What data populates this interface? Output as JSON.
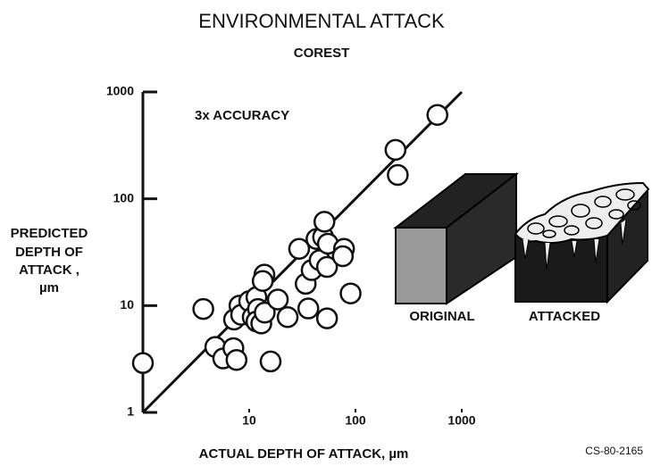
{
  "chart_data": {
    "type": "scatter",
    "title": "ENVIRONMENTAL ATTACK",
    "subtitle": "COREST",
    "annotation": "3x ACCURACY",
    "x_label": "ACTUAL DEPTH OF ATTACK, µm",
    "y_label": [
      "PREDICTED",
      "DEPTH OF",
      "ATTACK ,",
      "µm"
    ],
    "figure_labels": [
      "ORIGINAL",
      "ATTACKED"
    ],
    "code": "CS-80-2165",
    "log_x": true,
    "log_y": true,
    "xlim": [
      1,
      1000
    ],
    "ylim": [
      1,
      1000
    ],
    "xticks": [
      1,
      10,
      100,
      1000
    ],
    "yticks": [
      1,
      10,
      100,
      1000
    ],
    "color": "#111111",
    "x": [
      1,
      3.7,
      4.8,
      5.7,
      7.1,
      7.6,
      7.2,
      8.1,
      8.4,
      10,
      10.8,
      11.7,
      12.1,
      11.7,
      13,
      13.9,
      13.4,
      14,
      15.9,
      18.6,
      23,
      29.5,
      36,
      34,
      38.7,
      46,
      43,
      49.6,
      51,
      55,
      54,
      54,
      78,
      76,
      90,
      238,
      250,
      590
    ],
    "values": [
      2.9,
      9.3,
      4.1,
      3.2,
      4.0,
      3.1,
      7.4,
      10,
      8.2,
      11,
      7.8,
      12,
      9.3,
      7.1,
      6.8,
      19.5,
      17,
      8.6,
      3.0,
      11.4,
      7.8,
      34,
      9.4,
      16,
      21.5,
      26.6,
      42,
      43.8,
      61,
      38,
      7.6,
      23,
      34,
      29,
      13,
      287,
      167,
      610
    ]
  }
}
